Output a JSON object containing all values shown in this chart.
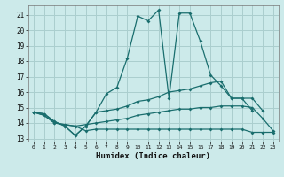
{
  "xlabel": "Humidex (Indice chaleur)",
  "xlim": [
    -0.5,
    23.5
  ],
  "ylim": [
    12.8,
    21.6
  ],
  "bg_color": "#cceaea",
  "grid_color": "#aacece",
  "line_color": "#1a6e6e",
  "xticks": [
    0,
    1,
    2,
    3,
    4,
    5,
    6,
    7,
    8,
    9,
    10,
    11,
    12,
    13,
    14,
    15,
    16,
    17,
    18,
    19,
    20,
    21,
    22,
    23
  ],
  "yticks": [
    13,
    14,
    15,
    16,
    17,
    18,
    19,
    20,
    21
  ],
  "series": [
    {
      "x": [
        0,
        1,
        2,
        3,
        4,
        5,
        6,
        7,
        8,
        9,
        10,
        11,
        12,
        13,
        14,
        15,
        16,
        17,
        18,
        19,
        20,
        21
      ],
      "y": [
        14.7,
        14.6,
        14.1,
        13.8,
        13.2,
        13.8,
        14.7,
        15.9,
        16.3,
        18.2,
        20.9,
        20.6,
        21.3,
        15.6,
        21.1,
        21.1,
        19.3,
        17.1,
        16.4,
        15.6,
        15.6,
        14.8
      ]
    },
    {
      "x": [
        0,
        1,
        2,
        3,
        4,
        5,
        6,
        7,
        8,
        9,
        10,
        11,
        12,
        13,
        14,
        15,
        16,
        17,
        18,
        19,
        20,
        21,
        22
      ],
      "y": [
        14.7,
        14.6,
        14.1,
        13.8,
        13.2,
        13.8,
        14.7,
        14.8,
        14.9,
        15.1,
        15.4,
        15.5,
        15.7,
        16.0,
        16.1,
        16.2,
        16.4,
        16.6,
        16.7,
        15.6,
        15.6,
        15.6,
        14.8
      ]
    },
    {
      "x": [
        0,
        1,
        2,
        3,
        4,
        5,
        6,
        7,
        8,
        9,
        10,
        11,
        12,
        13,
        14,
        15,
        16,
        17,
        18,
        19,
        20,
        21,
        22,
        23
      ],
      "y": [
        14.7,
        14.5,
        14.0,
        13.9,
        13.8,
        13.5,
        13.6,
        13.6,
        13.6,
        13.6,
        13.6,
        13.6,
        13.6,
        13.6,
        13.6,
        13.6,
        13.6,
        13.6,
        13.6,
        13.6,
        13.6,
        13.4,
        13.4,
        13.4
      ]
    },
    {
      "x": [
        0,
        1,
        2,
        3,
        4,
        5,
        6,
        7,
        8,
        9,
        10,
        11,
        12,
        13,
        14,
        15,
        16,
        17,
        18,
        19,
        20,
        21,
        22,
        23
      ],
      "y": [
        14.7,
        14.5,
        14.0,
        13.9,
        13.8,
        13.9,
        14.0,
        14.1,
        14.2,
        14.3,
        14.5,
        14.6,
        14.7,
        14.8,
        14.9,
        14.9,
        15.0,
        15.0,
        15.1,
        15.1,
        15.1,
        15.0,
        14.3,
        13.5
      ]
    }
  ]
}
